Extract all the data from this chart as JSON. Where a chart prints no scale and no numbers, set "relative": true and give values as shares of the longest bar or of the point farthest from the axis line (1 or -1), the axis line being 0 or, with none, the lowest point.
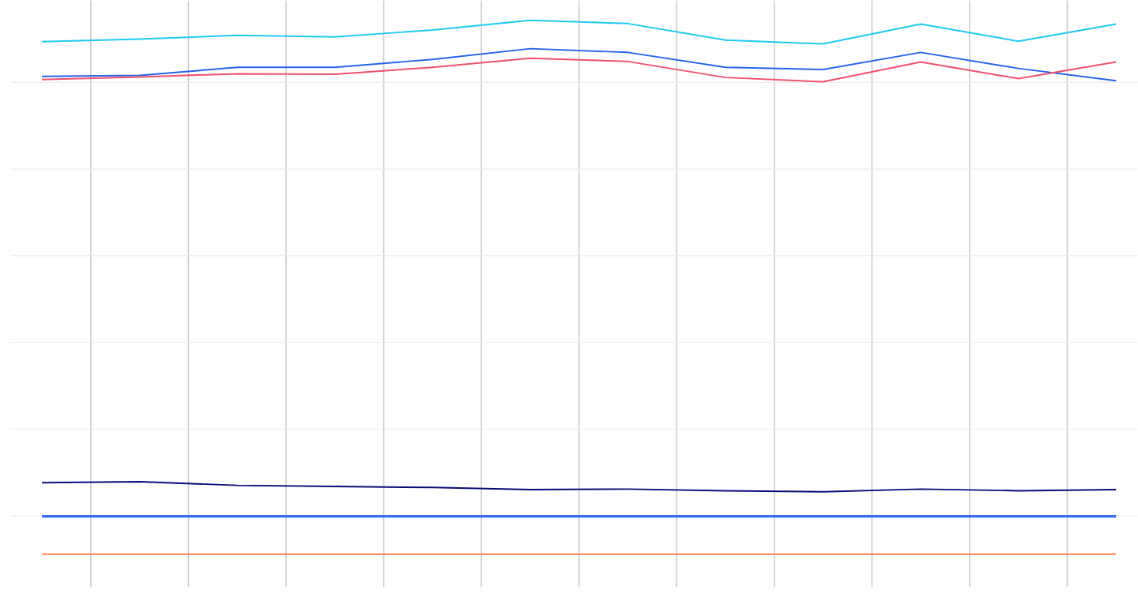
{
  "chart_data": {
    "type": "line",
    "relative": true,
    "grid": true,
    "marker": "none",
    "line_style": "solid",
    "categories": [
      null,
      null,
      null,
      null,
      null,
      null,
      null,
      null,
      null,
      null,
      null,
      null
    ],
    "series": [
      {
        "color": "#1ecbf0",
        "values": [
          0.96,
          0.965,
          0.972,
          0.969,
          0.982,
          1.0,
          0.994,
          0.963,
          0.956,
          0.993,
          0.961,
          0.993
        ]
      },
      {
        "color": "#2563eb",
        "values": [
          0.895,
          0.897,
          0.912,
          0.912,
          0.927,
          0.947,
          0.94,
          0.912,
          0.908,
          0.94,
          0.91,
          0.887
        ]
      },
      {
        "color": "#f0506e",
        "values": [
          0.889,
          0.894,
          0.9,
          0.899,
          0.912,
          0.929,
          0.923,
          0.893,
          0.885,
          0.922,
          0.891,
          0.922
        ]
      },
      {
        "color": "#0a0a78",
        "values": [
          0.134,
          0.136,
          0.129,
          0.127,
          0.125,
          0.121,
          0.122,
          0.119,
          0.117,
          0.122,
          0.119,
          0.121
        ]
      },
      {
        "color": "#3b6ff0",
        "values": [
          0.071,
          0.071,
          0.071,
          0.071,
          0.071,
          0.071,
          0.071,
          0.071,
          0.071,
          0.071,
          0.071,
          0.071
        ]
      },
      {
        "color": "#ff7f50",
        "values": [
          0,
          0,
          0,
          0,
          0,
          0,
          0,
          0,
          0,
          0,
          0,
          0
        ]
      }
    ]
  }
}
